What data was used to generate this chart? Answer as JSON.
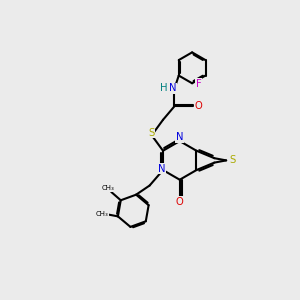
{
  "bg_color": "#ebebeb",
  "colors": {
    "bond": "#000000",
    "N": "#0000dd",
    "O": "#dd0000",
    "S": "#aaaa00",
    "F": "#cc00cc",
    "H": "#008080",
    "C": "#000000"
  },
  "figsize": [
    3.0,
    3.0
  ],
  "dpi": 100
}
